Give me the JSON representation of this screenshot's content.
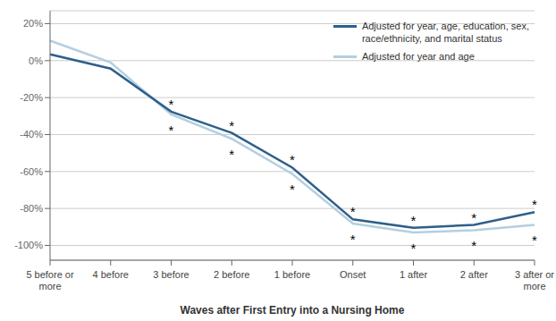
{
  "chart_data": {
    "type": "line",
    "xlabel": "Waves after First Entry into a Nursing Home",
    "categories": [
      "5 before or\nmore",
      "4 before",
      "3 before",
      "2 before",
      "1 before",
      "Onset",
      "1 after",
      "2 after",
      "3 after or\nmore"
    ],
    "series": [
      {
        "name": "Adjusted for year and age",
        "color": "#b3cfe0",
        "values": [
          0.108,
          -0.01,
          -0.291,
          -0.423,
          -0.613,
          -0.882,
          -0.93,
          -0.918,
          -0.889
        ]
      },
      {
        "name": "Adjusted for year, age, education, sex,\nrace/ethnicity, and marital status",
        "color": "#2e5f8a",
        "values": [
          0.034,
          -0.043,
          -0.276,
          -0.391,
          -0.579,
          -0.859,
          -0.905,
          -0.889,
          -0.82
        ]
      }
    ],
    "ylim": [
      -1.08,
      0.27
    ],
    "yticks": [
      {
        "value": -1.0,
        "label": "-100%"
      },
      {
        "value": -0.8,
        "label": "-80%"
      },
      {
        "value": -0.6,
        "label": "-60%"
      },
      {
        "value": -0.4,
        "label": "-40%"
      },
      {
        "value": -0.2,
        "label": "-20%"
      },
      {
        "value": 0.0,
        "label": "0%"
      },
      {
        "value": 0.2,
        "label": "20%"
      }
    ],
    "grid": true,
    "legend": "upper right",
    "annotations": [
      {
        "category": "3 before",
        "text": "*"
      },
      {
        "category": "3 before",
        "text": "*"
      },
      {
        "category": "2 before",
        "text": "*"
      },
      {
        "category": "2 before",
        "text": "*"
      },
      {
        "category": "1 before",
        "text": "*"
      },
      {
        "category": "1 before",
        "text": "*"
      },
      {
        "category": "Onset",
        "text": "*"
      },
      {
        "category": "Onset",
        "text": "*"
      },
      {
        "category": "1 after",
        "text": "*"
      },
      {
        "category": "1 after",
        "text": "*"
      },
      {
        "category": "2 after",
        "text": "*"
      },
      {
        "category": "2 after",
        "text": "*"
      },
      {
        "category": "3 after or\nmore",
        "text": "*"
      },
      {
        "category": "3 after or\nmore",
        "text": "*"
      }
    ]
  }
}
